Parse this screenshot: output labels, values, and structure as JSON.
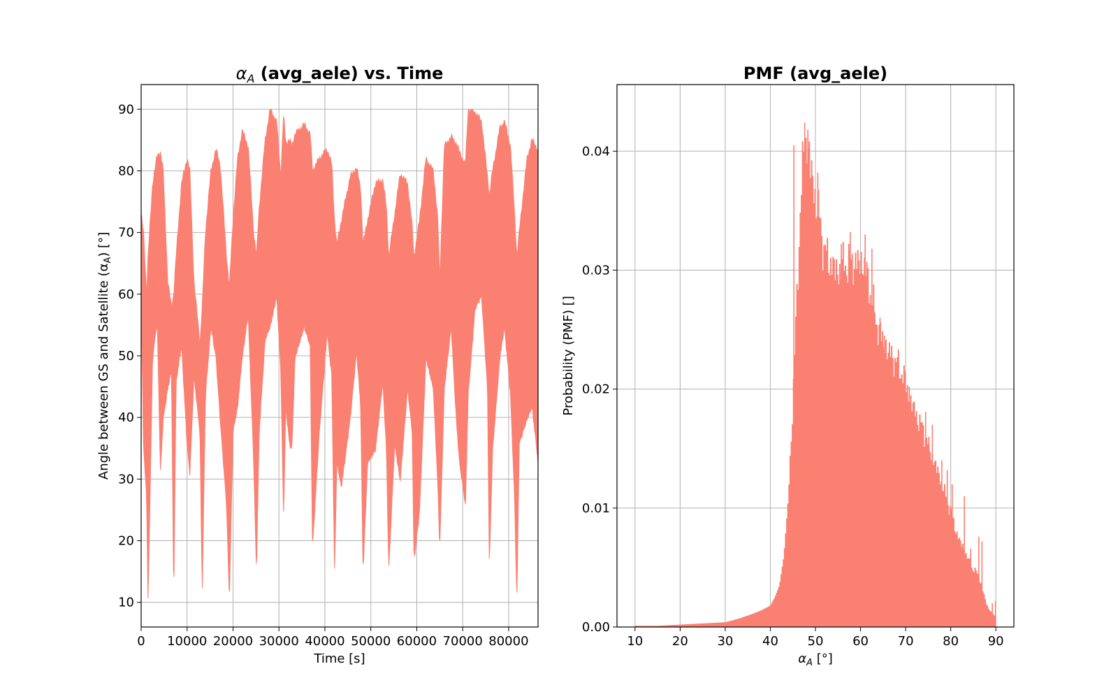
{
  "chart_data": [
    {
      "type": "line",
      "title_prefix": "α",
      "title_sub": "A",
      "title_suffix": " (avg_aele) vs. Time",
      "xlabel": "Time [s]",
      "ylabel_prefix": "Angle between GS and Satellite (α",
      "ylabel_sub": "A",
      "ylabel_suffix": ") [°]",
      "xlim": [
        0,
        86400
      ],
      "ylim": [
        6,
        94
      ],
      "xticks": [
        0,
        10000,
        20000,
        30000,
        40000,
        50000,
        60000,
        70000,
        80000
      ],
      "yticks": [
        10,
        20,
        30,
        40,
        50,
        60,
        70,
        80,
        90
      ],
      "grid": true,
      "color": "#fa8072",
      "envelope": {
        "x": [
          0,
          500,
          1200,
          1500,
          2500,
          3500,
          4200,
          4800,
          5800,
          6600,
          7100,
          7600,
          8800,
          10000,
          10600,
          11500,
          12800,
          13300,
          14000,
          15200,
          16300,
          17200,
          18600,
          19200,
          20000,
          21000,
          22000,
          23300,
          24500,
          25100,
          25700,
          27000,
          28100,
          29500,
          30400,
          31000,
          31500,
          32300,
          32800,
          33500,
          35500,
          36800,
          37300,
          38800,
          40500,
          41500,
          42100,
          42600,
          43600,
          45500,
          46900,
          47800,
          48300,
          49300,
          51000,
          52600,
          53400,
          53900,
          55200,
          56400,
          58000,
          59000,
          59400,
          60600,
          62000,
          63600,
          64600,
          65000,
          66000,
          67500,
          68600,
          69300,
          70600,
          71200,
          72700,
          74100,
          75400,
          75800,
          76500,
          78100,
          79100,
          80400,
          81300,
          81800,
          82300,
          84000,
          85100,
          86000,
          86400
        ],
        "upper": [
          73,
          70,
          60,
          66,
          78,
          82.5,
          83,
          80,
          62,
          58,
          60,
          66,
          78,
          82,
          80,
          62,
          52,
          58,
          70,
          80,
          83.5,
          81,
          66,
          61,
          72,
          82,
          86.5,
          84,
          70,
          66,
          74,
          85,
          90,
          88,
          79,
          89,
          84.5,
          85,
          84,
          86,
          87.5,
          86,
          80,
          82,
          83.5,
          81,
          72,
          68,
          72,
          79,
          80.5,
          77,
          68,
          72,
          78,
          78.5,
          74,
          66,
          73,
          79.5,
          78,
          71,
          66,
          72,
          82,
          80,
          72,
          62,
          84,
          85.5,
          84.5,
          83,
          81,
          90,
          89.5,
          88,
          79,
          76,
          80,
          87,
          88,
          84,
          73,
          66,
          70,
          82,
          85,
          84,
          83
        ],
        "lower": [
          60,
          36,
          27,
          10,
          50,
          56,
          31.5,
          40,
          45,
          48,
          10.5,
          46,
          52,
          36,
          31,
          47,
          38,
          11.5,
          44,
          55,
          50,
          40,
          26,
          10.5,
          38,
          42,
          50,
          57,
          33,
          15,
          38,
          53,
          55,
          60,
          48,
          24,
          42,
          36,
          35,
          50,
          55,
          52,
          19,
          38,
          54,
          47,
          15,
          33,
          29,
          40,
          51,
          42,
          15,
          33,
          35,
          46,
          35,
          15.5,
          36,
          30,
          45,
          38,
          17,
          25,
          50,
          45,
          29,
          19,
          45,
          55,
          40,
          33,
          26,
          44,
          58,
          60,
          45,
          16,
          35,
          50,
          55,
          44,
          27,
          10,
          36,
          40,
          42,
          36,
          33
        ]
      }
    },
    {
      "type": "bar",
      "title": "PMF (avg_aele)",
      "xlabel_prefix": "α",
      "xlabel_sub": "A",
      "xlabel_suffix": " [°]",
      "ylabel": "Probability (PMF) []",
      "xlim": [
        6,
        94
      ],
      "ylim": [
        0,
        0.0456
      ],
      "xticks": [
        10,
        20,
        30,
        40,
        50,
        60,
        70,
        80,
        90
      ],
      "yticks": [
        0.0,
        0.01,
        0.02,
        0.03,
        0.04
      ],
      "ytick_labels": [
        "0.00",
        "0.01",
        "0.02",
        "0.03",
        "0.04"
      ],
      "grid": true,
      "color": "#fa8072",
      "bin_width": 0.25,
      "profile": {
        "x": [
          10,
          15,
          20,
          25,
          30,
          33,
          36,
          38,
          40,
          41,
          42,
          43,
          44,
          45,
          45.5,
          46,
          46.5,
          47,
          47.5,
          48,
          48.5,
          49,
          49.5,
          50,
          51,
          52,
          53,
          54,
          55,
          56,
          57,
          58,
          59,
          60,
          61,
          62,
          63,
          64,
          65,
          66,
          67,
          68,
          69,
          70,
          71,
          72,
          73,
          74,
          75,
          76,
          77,
          78,
          79,
          80,
          81,
          82,
          83,
          84,
          85,
          86,
          87,
          88,
          89,
          90
        ],
        "y": [
          0.0001,
          0.0001,
          0.0002,
          0.0003,
          0.0004,
          0.0007,
          0.0011,
          0.0014,
          0.0018,
          0.0025,
          0.0035,
          0.006,
          0.011,
          0.019,
          0.024,
          0.029,
          0.034,
          0.0375,
          0.0405,
          0.0408,
          0.0398,
          0.0385,
          0.037,
          0.036,
          0.034,
          0.0315,
          0.0308,
          0.0302,
          0.0298,
          0.0305,
          0.0305,
          0.0308,
          0.0305,
          0.0307,
          0.0302,
          0.0285,
          0.0265,
          0.025,
          0.024,
          0.0232,
          0.0228,
          0.0222,
          0.0215,
          0.0205,
          0.019,
          0.0182,
          0.0172,
          0.0165,
          0.0152,
          0.0142,
          0.0132,
          0.012,
          0.0108,
          0.0098,
          0.0082,
          0.0072,
          0.0065,
          0.0055,
          0.0048,
          0.0045,
          0.0032,
          0.0018,
          0.0012,
          0.0008
        ]
      },
      "spikes": [
        {
          "x": 45.1,
          "y": 0.0405
        },
        {
          "x": 47.5,
          "y": 0.0424
        },
        {
          "x": 48.2,
          "y": 0.0418
        },
        {
          "x": 50.4,
          "y": 0.0382
        },
        {
          "x": 52.5,
          "y": 0.032
        },
        {
          "x": 55.6,
          "y": 0.0322
        },
        {
          "x": 57.6,
          "y": 0.0332
        },
        {
          "x": 60.9,
          "y": 0.033
        },
        {
          "x": 62.4,
          "y": 0.0318
        },
        {
          "x": 64.2,
          "y": 0.026
        },
        {
          "x": 65.2,
          "y": 0.0245
        },
        {
          "x": 69.7,
          "y": 0.0215
        },
        {
          "x": 70.7,
          "y": 0.0202
        },
        {
          "x": 74.3,
          "y": 0.0181
        },
        {
          "x": 75.8,
          "y": 0.017
        },
        {
          "x": 77.9,
          "y": 0.014
        },
        {
          "x": 79.1,
          "y": 0.0132
        },
        {
          "x": 80.2,
          "y": 0.012
        },
        {
          "x": 82.9,
          "y": 0.011
        },
        {
          "x": 84.3,
          "y": 0.0066
        },
        {
          "x": 86.1,
          "y": 0.0076
        },
        {
          "x": 86.8,
          "y": 0.0072
        },
        {
          "x": 89.1,
          "y": 0.002
        },
        {
          "x": 89.8,
          "y": 0.0022
        }
      ]
    }
  ]
}
